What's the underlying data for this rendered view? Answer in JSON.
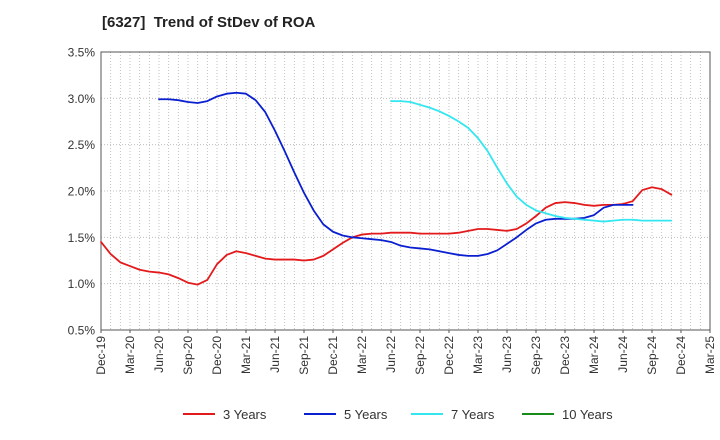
{
  "chart_data": {
    "type": "line",
    "title": "[6327]  Trend of StDev of ROA",
    "xlabel": "",
    "ylabel": "",
    "ylim": [
      0.5,
      3.5
    ],
    "y_ticks": [
      "0.5%",
      "1.0%",
      "1.5%",
      "2.0%",
      "2.5%",
      "3.0%",
      "3.5%"
    ],
    "x_ticks": [
      "Dec-19",
      "Mar-20",
      "Jun-20",
      "Sep-20",
      "Dec-20",
      "Mar-21",
      "Jun-21",
      "Sep-21",
      "Dec-21",
      "Mar-22",
      "Jun-22",
      "Sep-22",
      "Dec-22",
      "Mar-23",
      "Jun-23",
      "Sep-23",
      "Dec-23",
      "Mar-24",
      "Jun-24",
      "Sep-24",
      "Dec-24",
      "Mar-25"
    ],
    "grid": true,
    "legend_position": "bottom",
    "series": [
      {
        "name": "3 Years",
        "color": "#e31a1c",
        "start_index": 0,
        "values": [
          1.45,
          1.32,
          1.23,
          1.19,
          1.15,
          1.13,
          1.12,
          1.1,
          1.06,
          1.01,
          0.99,
          1.04,
          1.21,
          1.31,
          1.35,
          1.33,
          1.3,
          1.27,
          1.26,
          1.26,
          1.26,
          1.25,
          1.26,
          1.3,
          1.37,
          1.44,
          1.5,
          1.53,
          1.54,
          1.54,
          1.55,
          1.55,
          1.55,
          1.54,
          1.54,
          1.54,
          1.54,
          1.55,
          1.57,
          1.59,
          1.59,
          1.58,
          1.57,
          1.59,
          1.65,
          1.73,
          1.82,
          1.87,
          1.88,
          1.87,
          1.85,
          1.84,
          1.85,
          1.85,
          1.86,
          1.89,
          2.01,
          2.04,
          2.02,
          1.96
        ]
      },
      {
        "name": "5 Years",
        "color": "#0a1fd0",
        "start_index": 6,
        "values": [
          2.99,
          2.99,
          2.98,
          2.96,
          2.95,
          2.97,
          3.02,
          3.05,
          3.06,
          3.05,
          2.98,
          2.85,
          2.65,
          2.43,
          2.2,
          1.98,
          1.79,
          1.64,
          1.56,
          1.52,
          1.5,
          1.49,
          1.48,
          1.47,
          1.45,
          1.41,
          1.39,
          1.38,
          1.37,
          1.35,
          1.33,
          1.31,
          1.3,
          1.3,
          1.32,
          1.36,
          1.43,
          1.5,
          1.58,
          1.65,
          1.69,
          1.7,
          1.7,
          1.7,
          1.71,
          1.74,
          1.82,
          1.85,
          1.85,
          1.85
        ]
      },
      {
        "name": "7 Years",
        "color": "#33e6f0",
        "start_index": 30,
        "values": [
          2.97,
          2.97,
          2.96,
          2.93,
          2.9,
          2.86,
          2.81,
          2.75,
          2.68,
          2.57,
          2.43,
          2.25,
          2.08,
          1.94,
          1.85,
          1.79,
          1.76,
          1.73,
          1.71,
          1.7,
          1.69,
          1.68,
          1.67,
          1.68,
          1.69,
          1.69,
          1.68,
          1.68,
          1.68,
          1.68
        ]
      },
      {
        "name": "10 Years",
        "color": "#1a8a1a",
        "start_index": 0,
        "values": []
      }
    ]
  }
}
